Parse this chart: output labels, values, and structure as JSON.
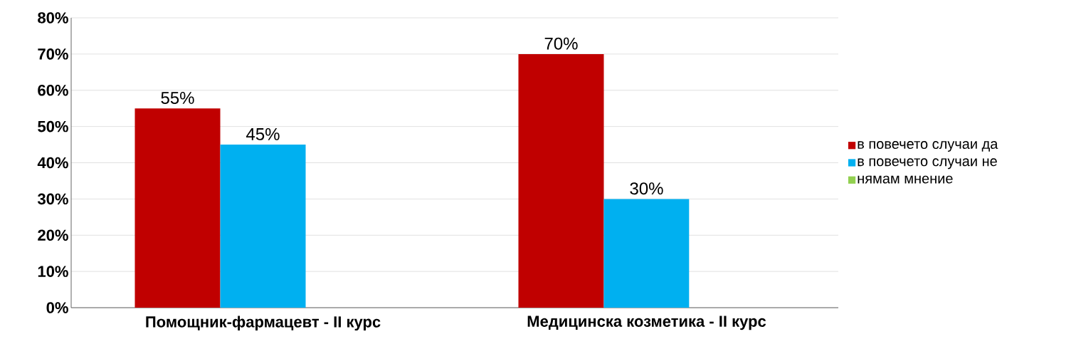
{
  "chart_data": {
    "type": "bar",
    "categories": [
      "Помощник-фармацевт - II курс",
      "Медицинска козметика - II курс"
    ],
    "series": [
      {
        "name": "в повечето случаи да",
        "color": "#c00000",
        "values": [
          55,
          70
        ],
        "value_labels": [
          "55%",
          "70%"
        ]
      },
      {
        "name": "в повечето случаи не",
        "color": "#00b0f0",
        "values": [
          45,
          30
        ],
        "value_labels": [
          "45%",
          "30%"
        ]
      },
      {
        "name": "нямам мнение",
        "color": "#92d050",
        "values": [
          0,
          0
        ],
        "value_labels": [
          null,
          null
        ]
      }
    ],
    "ylim": [
      0,
      80
    ],
    "yticks": [
      {
        "value": 0,
        "label": "0%"
      },
      {
        "value": 10,
        "label": "10%"
      },
      {
        "value": 20,
        "label": "20%"
      },
      {
        "value": 30,
        "label": "30%"
      },
      {
        "value": 40,
        "label": "40%"
      },
      {
        "value": 50,
        "label": "50%"
      },
      {
        "value": 60,
        "label": "60%"
      },
      {
        "value": 70,
        "label": "70%"
      },
      {
        "value": 80,
        "label": "80%"
      }
    ],
    "grid": "y",
    "legend": "right"
  }
}
